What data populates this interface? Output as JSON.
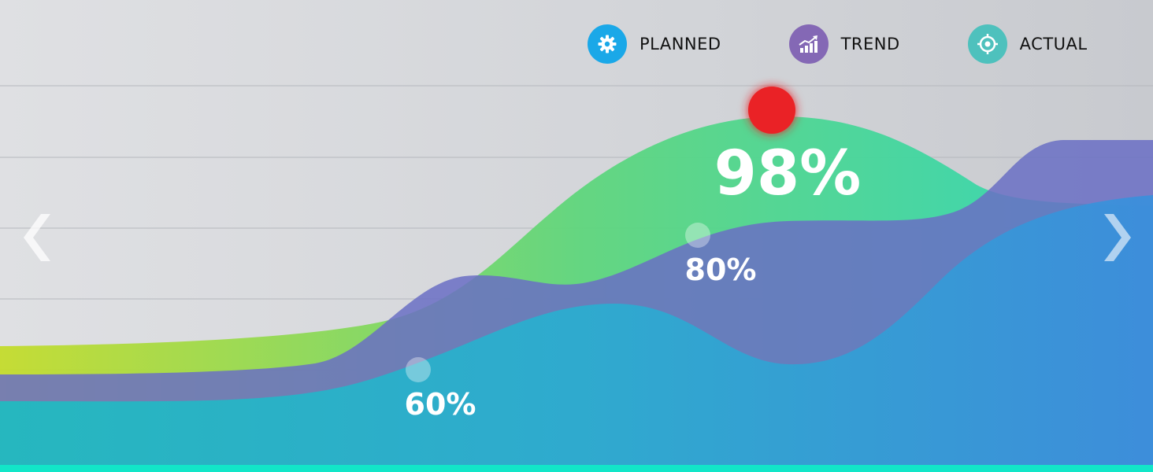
{
  "legend": [
    {
      "label": "PLANNED",
      "icon": "gear-icon",
      "color": "#1aa8e8"
    },
    {
      "label": "TREND",
      "icon": "trend-chart-icon",
      "color": "#8468b5"
    },
    {
      "label": "ACTUAL",
      "icon": "target-icon",
      "color": "#4ec1bd"
    }
  ],
  "navigation": {
    "prev_icon": "chevron-left-icon",
    "next_icon": "chevron-right-icon"
  },
  "colors": {
    "background": "#d5d7db",
    "green_series_start": "#c4dc2c",
    "green_series_end": "#2ed6b8",
    "purple_series": "#6a6fc4",
    "teal_series_start": "#1fbcc0",
    "teal_series_end": "#3a8fdc",
    "highlight_marker": "#ea2226",
    "bottom_bar": "#12e6c8"
  },
  "chart_data": {
    "type": "area",
    "title": "",
    "xlabel": "",
    "ylabel": "",
    "grid": true,
    "legend_position": "top-right",
    "annotations": [
      {
        "text": "98%",
        "value": 98,
        "highlight": true
      },
      {
        "text": "80%",
        "value": 80
      },
      {
        "text": "60%",
        "value": 60
      }
    ]
  }
}
